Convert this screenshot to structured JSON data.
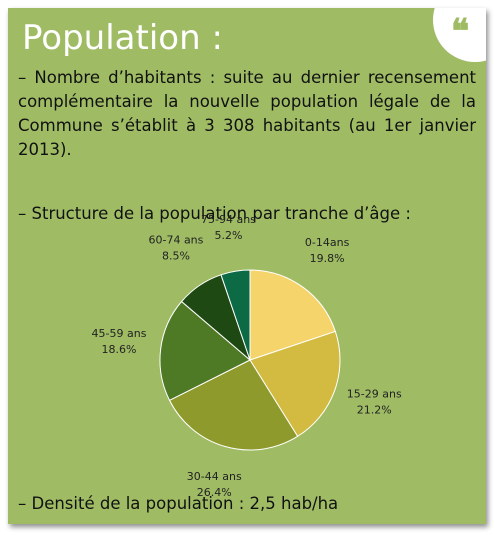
{
  "title": "Population :",
  "paragraphs": [
    "– Nombre d’habitants : suite au dernier recensement complémentaire la nouvelle population légale de la Commune s’établit à 3 308 habitants (au 1er janvier 2013).",
    "– Structure de la population par tranche d’âge :"
  ],
  "chart_data": {
    "type": "pie",
    "categories": [
      "0-14ans",
      "15-29 ans",
      "30-44 ans",
      "45-59 ans",
      "60-74 ans",
      "75-94 ans"
    ],
    "values": [
      19.8,
      21.2,
      26.4,
      18.6,
      8.5,
      5.2
    ],
    "value_labels": [
      "19.8%",
      "21.2%",
      "26.4%",
      "18.6%",
      "8.5%",
      "5.2%"
    ],
    "colors": [
      "#f6d46c",
      "#d2bb40",
      "#8e9a2b",
      "#4e7a25",
      "#1f4913",
      "#0c6a45"
    ]
  },
  "footer": "– Densité de la population : 2,5 hab/ha"
}
